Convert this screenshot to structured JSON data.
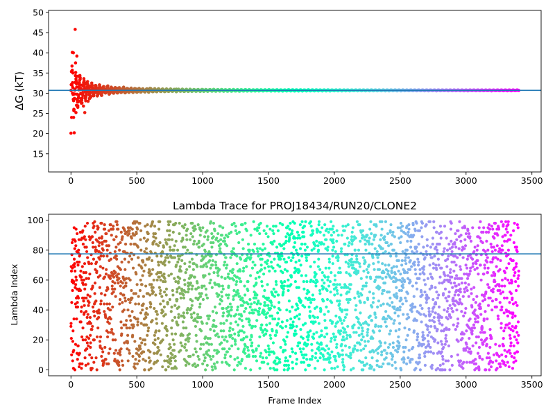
{
  "chart_data": [
    {
      "type": "scatter",
      "title": "",
      "xlabel": "",
      "ylabel": "ΔG (kT)",
      "xlim": [
        -170,
        3570
      ],
      "ylim": [
        10.5,
        50.5
      ],
      "xticks": [
        0,
        500,
        1000,
        1500,
        2000,
        2500,
        3000,
        3500
      ],
      "yticks": [
        15,
        20,
        25,
        30,
        35,
        40,
        45,
        50
      ],
      "reference_line": 30.7,
      "reference_color": "#1f77b4",
      "colormap": "rainbow",
      "legend": "none",
      "grid": false,
      "series": [
        {
          "description": "running free-energy estimate per frame, color by frame index (red → violet)",
          "x_range": [
            0,
            3400
          ],
          "points": [
            [
              0,
              20.1
            ],
            [
              5,
              24.0
            ],
            [
              8,
              32.0
            ],
            [
              10,
              40.1
            ],
            [
              12,
              30.0
            ],
            [
              15,
              35.0
            ],
            [
              18,
              40.0
            ],
            [
              20,
              24.0
            ],
            [
              22,
              26.0
            ],
            [
              25,
              20.2
            ],
            [
              28,
              29.8
            ],
            [
              30,
              31.0
            ],
            [
              32,
              45.8
            ],
            [
              35,
              37.5
            ],
            [
              38,
              25.2
            ],
            [
              40,
              33.0
            ],
            [
              42,
              27.0
            ],
            [
              45,
              39.2
            ],
            [
              48,
              28.5
            ],
            [
              50,
              32.5
            ],
            [
              52,
              26.5
            ],
            [
              55,
              34.2
            ],
            [
              58,
              29.0
            ],
            [
              60,
              31.5
            ],
            [
              65,
              28.0
            ],
            [
              70,
              33.5
            ],
            [
              75,
              30.0
            ],
            [
              80,
              27.5
            ],
            [
              85,
              32.0
            ],
            [
              90,
              29.5
            ],
            [
              95,
              26.8
            ],
            [
              100,
              31.8
            ],
            [
              105,
              25.2
            ],
            [
              110,
              28.8
            ],
            [
              115,
              32.5
            ],
            [
              120,
              30.5
            ],
            [
              130,
              28.0
            ],
            [
              140,
              31.5
            ],
            [
              150,
              29.0
            ],
            [
              160,
              32.0
            ],
            [
              170,
              30.2
            ],
            [
              180,
              31.0
            ],
            [
              200,
              30.0
            ],
            [
              220,
              31.5
            ],
            [
              250,
              30.5
            ],
            [
              280,
              31.8
            ],
            [
              300,
              30.3
            ],
            [
              350,
              31.2
            ],
            [
              400,
              31.5
            ],
            [
              450,
              30.8
            ],
            [
              500,
              31.0
            ],
            [
              600,
              31.2
            ],
            [
              700,
              30.9
            ],
            [
              800,
              31.0
            ],
            [
              1000,
              30.9
            ],
            [
              1200,
              30.8
            ],
            [
              1500,
              30.7
            ],
            [
              2000,
              30.7
            ],
            [
              2500,
              30.7
            ],
            [
              3000,
              30.7
            ],
            [
              3400,
              30.7
            ]
          ]
        }
      ]
    },
    {
      "type": "scatter",
      "title": "Lambda Trace for PROJ18434/RUN20/CLONE2",
      "xlabel": "Frame Index",
      "ylabel": "Lambda Index",
      "xlim": [
        -170,
        3570
      ],
      "ylim": [
        -4,
        104
      ],
      "xticks": [
        0,
        500,
        1000,
        1500,
        2000,
        2500,
        3000,
        3500
      ],
      "yticks": [
        0,
        20,
        40,
        60,
        80,
        100
      ],
      "reference_line": 77.5,
      "reference_color": "#1f77b4",
      "colormap": "rainbow",
      "legend": "none",
      "grid": false,
      "series": [
        {
          "description": "lambda index visited at each frame, uniformly spread between 0 and 99, color by frame index (red → violet)",
          "x_range": [
            0,
            3400
          ],
          "y_range": [
            0,
            99
          ],
          "n_points": 3400
        }
      ]
    }
  ]
}
